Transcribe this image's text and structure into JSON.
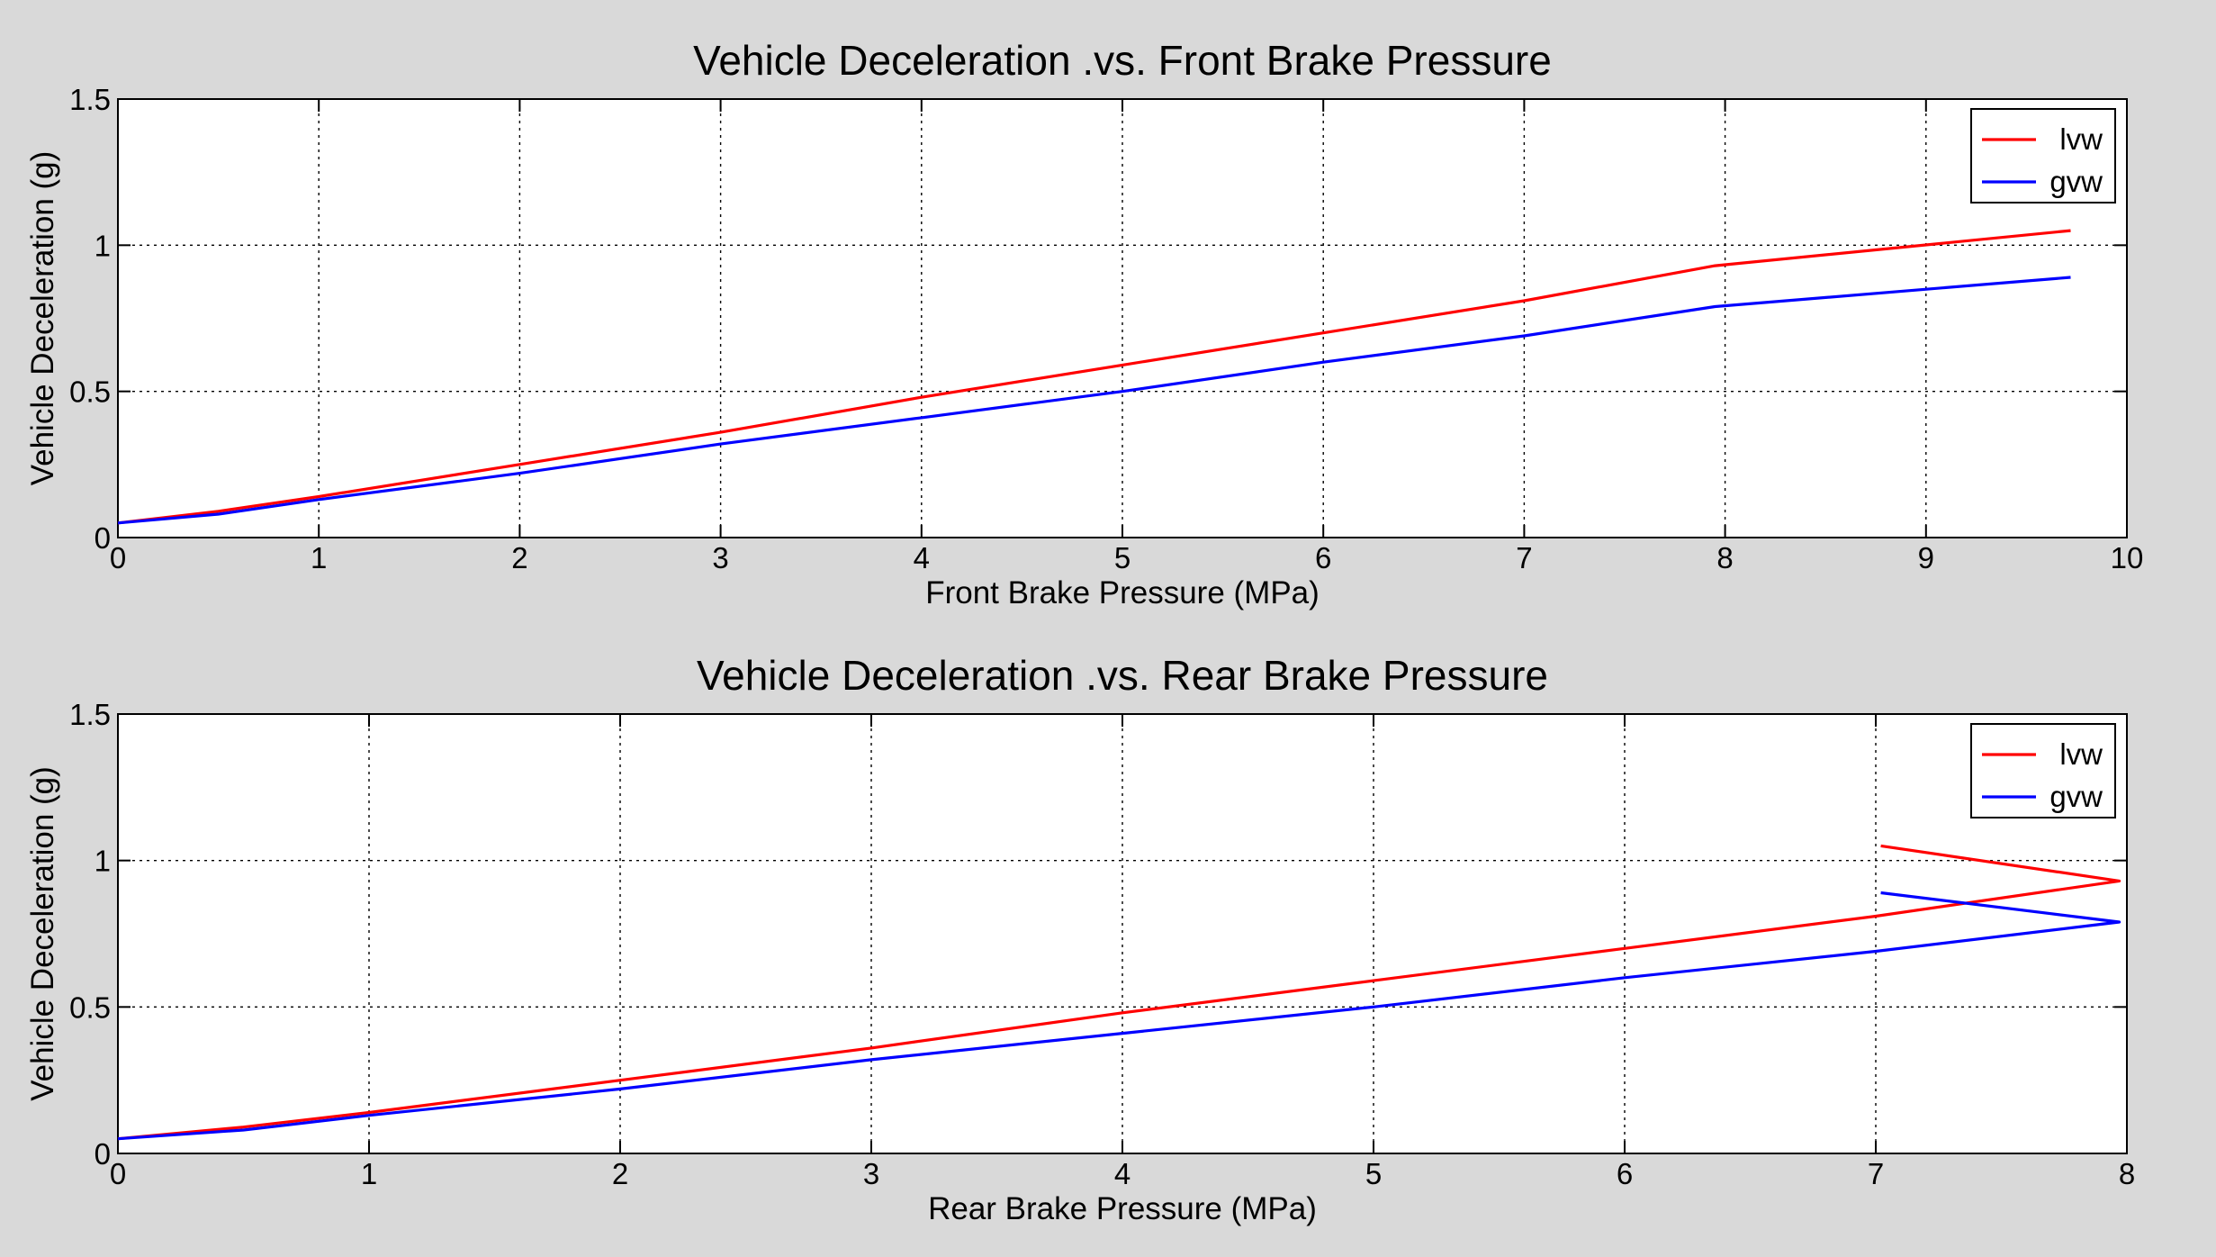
{
  "chart_data": [
    {
      "type": "line",
      "title": "Vehicle Deceleration .vs. Front Brake Pressure",
      "xlabel": "Front Brake Pressure (MPa)",
      "ylabel": "Vehicle Deceleration (g)",
      "xlim": [
        0,
        10
      ],
      "ylim": [
        0,
        1.5
      ],
      "xticks": [
        "0",
        "1",
        "2",
        "3",
        "4",
        "5",
        "6",
        "7",
        "8",
        "9",
        "10"
      ],
      "yticks": [
        "0",
        "0.5",
        "1",
        "1.5"
      ],
      "grid": true,
      "legend_position": "top-right",
      "series": [
        {
          "name": "lvw",
          "color": "#ff0000",
          "points": [
            [
              0,
              0.05
            ],
            [
              0.5,
              0.09
            ],
            [
              1,
              0.14
            ],
            [
              2,
              0.25
            ],
            [
              3,
              0.36
            ],
            [
              4,
              0.48
            ],
            [
              5,
              0.59
            ],
            [
              6,
              0.7
            ],
            [
              7,
              0.81
            ],
            [
              7.95,
              0.93
            ],
            [
              9.72,
              1.05
            ]
          ]
        },
        {
          "name": "gvw",
          "color": "#0000ff",
          "points": [
            [
              0,
              0.05
            ],
            [
              0.5,
              0.08
            ],
            [
              1,
              0.13
            ],
            [
              2,
              0.22
            ],
            [
              3,
              0.32
            ],
            [
              4,
              0.41
            ],
            [
              5,
              0.5
            ],
            [
              6,
              0.6
            ],
            [
              7,
              0.69
            ],
            [
              7.95,
              0.79
            ],
            [
              9.72,
              0.89
            ]
          ]
        }
      ]
    },
    {
      "type": "line",
      "title": "Vehicle Deceleration .vs. Rear Brake Pressure",
      "xlabel": "Rear Brake Pressure (MPa)",
      "ylabel": "Vehicle Deceleration (g)",
      "xlim": [
        0,
        8
      ],
      "ylim": [
        0,
        1.5
      ],
      "xticks": [
        "0",
        "1",
        "2",
        "3",
        "4",
        "5",
        "6",
        "7",
        "8"
      ],
      "yticks": [
        "0",
        "0.5",
        "1",
        "1.5"
      ],
      "grid": true,
      "legend_position": "top-right",
      "series": [
        {
          "name": "lvw",
          "color": "#ff0000",
          "points": [
            [
              0,
              0.05
            ],
            [
              0.5,
              0.09
            ],
            [
              1,
              0.14
            ],
            [
              2,
              0.25
            ],
            [
              3,
              0.36
            ],
            [
              4,
              0.48
            ],
            [
              5,
              0.59
            ],
            [
              6,
              0.7
            ],
            [
              7,
              0.81
            ],
            [
              7.97,
              0.93
            ],
            [
              7.02,
              1.05
            ]
          ]
        },
        {
          "name": "gvw",
          "color": "#0000ff",
          "points": [
            [
              0,
              0.05
            ],
            [
              0.5,
              0.08
            ],
            [
              1,
              0.13
            ],
            [
              2,
              0.22
            ],
            [
              3,
              0.32
            ],
            [
              4,
              0.41
            ],
            [
              5,
              0.5
            ],
            [
              6,
              0.6
            ],
            [
              7,
              0.69
            ],
            [
              7.97,
              0.79
            ],
            [
              7.02,
              0.89
            ]
          ]
        }
      ]
    }
  ]
}
